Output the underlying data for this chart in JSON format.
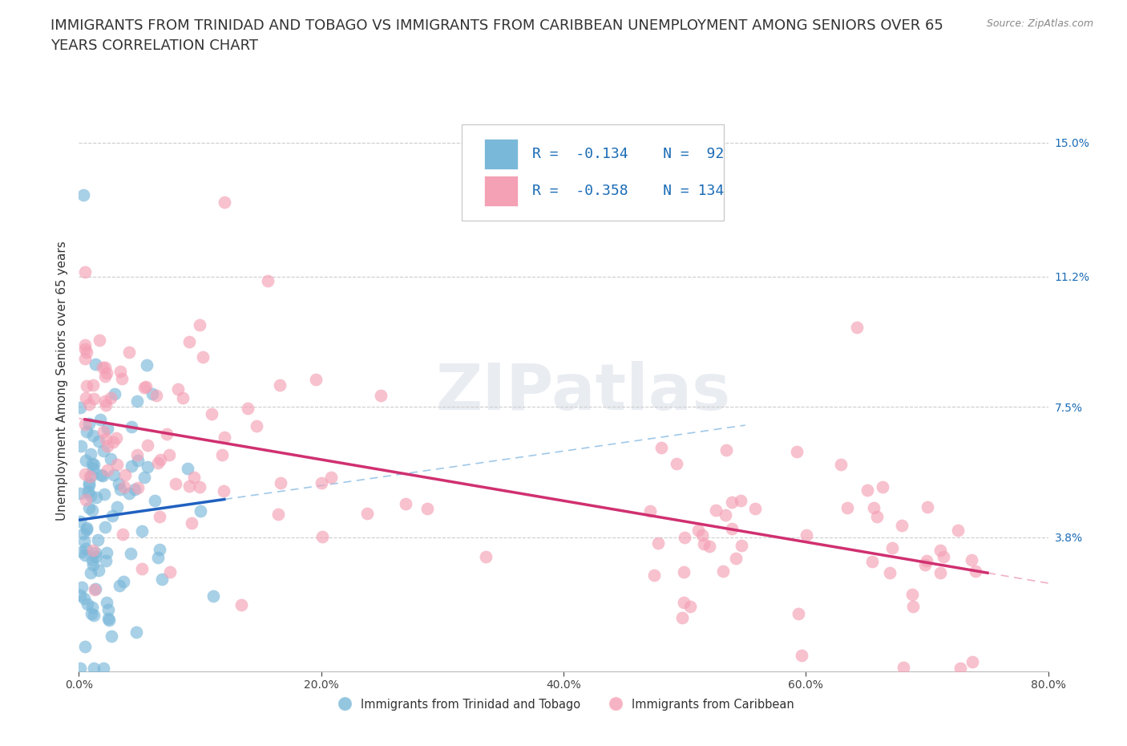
{
  "title_line1": "IMMIGRANTS FROM TRINIDAD AND TOBAGO VS IMMIGRANTS FROM CARIBBEAN UNEMPLOYMENT AMONG SENIORS OVER 65",
  "title_line2": "YEARS CORRELATION CHART",
  "source": "Source: ZipAtlas.com",
  "ylabel": "Unemployment Among Seniors over 65 years",
  "series1_label": "Immigrants from Trinidad and Tobago",
  "series2_label": "Immigrants from Caribbean",
  "series1_color": "#7ab8d9",
  "series2_color": "#f4a0b5",
  "series1_line_color": "#2060c0",
  "series2_line_color": "#d03070",
  "series1_dash_color": "#a0c8e8",
  "series2_dash_color": "#f0b0c8",
  "series1_R": -0.134,
  "series1_N": 92,
  "series2_R": -0.358,
  "series2_N": 134,
  "xlim": [
    0.0,
    0.8
  ],
  "ylim": [
    0.0,
    0.165
  ],
  "xtick_labels": [
    "0.0%",
    "20.0%",
    "40.0%",
    "60.0%",
    "80.0%"
  ],
  "xtick_values": [
    0.0,
    0.2,
    0.4,
    0.6,
    0.8
  ],
  "ytick_right_labels": [
    "15.0%",
    "11.2%",
    "7.5%",
    "3.8%"
  ],
  "ytick_right_values": [
    0.15,
    0.112,
    0.075,
    0.038
  ],
  "watermark": "ZIPatlas",
  "title_fontsize": 13,
  "axis_fontsize": 11,
  "tick_fontsize": 10,
  "legend_fontsize": 13
}
